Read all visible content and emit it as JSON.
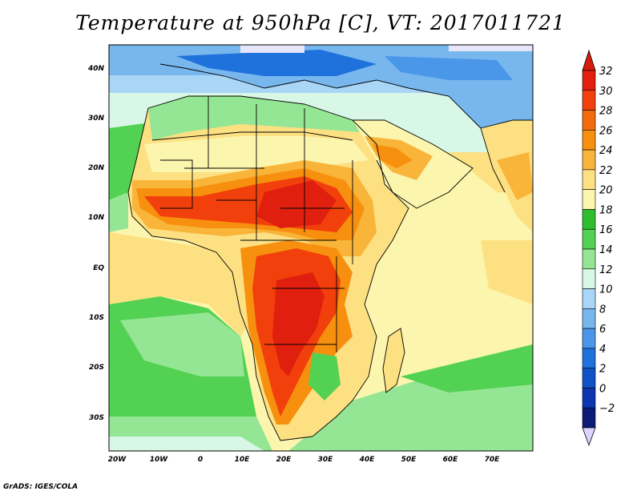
{
  "title": "Temperature at 950hPa [C], VT: 2017011721",
  "credit": "GrADS: IGES/COLA",
  "axes": {
    "lon_labels": [
      "20W",
      "10W",
      "0",
      "10E",
      "20E",
      "30E",
      "40E",
      "50E",
      "60E",
      "70E"
    ],
    "lat_labels": [
      "40N",
      "30N",
      "20N",
      "10N",
      "EQ",
      "10S",
      "20S",
      "30S"
    ]
  },
  "colorbar": {
    "ticks": [
      "32",
      "30",
      "28",
      "26",
      "24",
      "22",
      "20",
      "18",
      "16",
      "14",
      "12",
      "10",
      "8",
      "6",
      "4",
      "2",
      "0",
      "−2"
    ],
    "colors": [
      "#e01f0f",
      "#f2400c",
      "#f46a0f",
      "#f7900e",
      "#f9b43a",
      "#fde082",
      "#fcf5ad",
      "#2fbd2f",
      "#52d152",
      "#94e694",
      "#d9f7e7",
      "#a9d6f7",
      "#78b6ee",
      "#4a96e8",
      "#1f72db",
      "#0f52c8",
      "#0b36b0",
      "#0a1c78"
    ],
    "top_arrow_color": "#d61c0e",
    "bottom_arrow_color": "#dcd4ff"
  },
  "colors": {
    "ocean_warm": "#fcf5ad",
    "ocean_cool": "#52d152",
    "land_hot": "#f2400c",
    "boundary": "#000000"
  }
}
